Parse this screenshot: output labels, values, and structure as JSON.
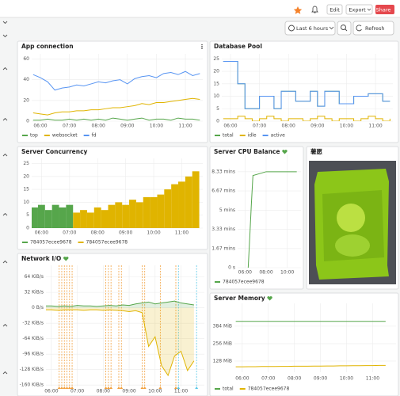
{
  "toolbar": {
    "edit": "Edit",
    "export": "Export",
    "share": "Share",
    "time_range": "Last 6 hours",
    "refresh": "Refresh"
  },
  "panels": [
    {
      "title": "App connection",
      "chart": {
        "type": "line",
        "x": [
          5.75,
          6,
          6.25,
          6.5,
          6.75,
          7,
          7.25,
          7.5,
          7.75,
          8,
          8.25,
          8.5,
          8.75,
          9,
          9.25,
          9.5,
          9.75,
          10,
          10.25,
          10.5,
          10.75,
          11,
          11.25,
          11.5
        ],
        "xlim": [
          5.7,
          11.6
        ],
        "xticks": [
          {
            "value": 6,
            "label": "06:00"
          },
          {
            "value": 7,
            "label": "07:00"
          },
          {
            "value": 8,
            "label": "08:00"
          },
          {
            "value": 9,
            "label": "09:00"
          },
          {
            "value": 10,
            "label": "10:00"
          },
          {
            "value": 11,
            "label": "11:00"
          }
        ],
        "ylim": [
          0,
          65
        ],
        "yticks": [
          0,
          20,
          40,
          60
        ],
        "grid": true,
        "legend": "bottom",
        "series": [
          {
            "name": "top",
            "color": "#56a64b",
            "values": [
              1,
              1,
              2,
              1,
              1,
              2,
              1,
              2,
              1,
              2,
              1,
              3,
              2,
              1,
              2,
              3,
              1,
              2,
              2,
              1,
              3,
              2,
              2,
              1
            ]
          },
          {
            "name": "websocket",
            "color": "#e0b400",
            "values": [
              8,
              7,
              6,
              8,
              9,
              9,
              10,
              10,
              11,
              11,
              12,
              13,
              13,
              14,
              15,
              17,
              16,
              18,
              18,
              19,
              20,
              21,
              22,
              21
            ]
          },
          {
            "name": "fd",
            "color": "#5794f2",
            "values": [
              45,
              42,
              38,
              30,
              32,
              33,
              35,
              34,
              36,
              38,
              37,
              39,
              40,
              36,
              41,
              43,
              44,
              42,
              46,
              47,
              45,
              48,
              44,
              46
            ]
          }
        ]
      }
    },
    {
      "title": "Database Pool",
      "chart": {
        "type": "line",
        "step": true,
        "x": [
          5.75,
          6,
          6.25,
          6.5,
          6.75,
          7,
          7.25,
          7.5,
          7.75,
          8,
          8.25,
          8.5,
          8.75,
          9,
          9.25,
          9.5,
          9.75,
          10,
          10.25,
          10.5,
          10.75,
          11,
          11.25,
          11.5
        ],
        "xlim": [
          5.7,
          11.6
        ],
        "xticks": [
          {
            "value": 6,
            "label": "06:00"
          },
          {
            "value": 7,
            "label": "07:00"
          },
          {
            "value": 8,
            "label": "08:00"
          },
          {
            "value": 9,
            "label": "09:00"
          },
          {
            "value": 10,
            "label": "10:00"
          },
          {
            "value": 11,
            "label": "11:00"
          }
        ],
        "ylim": [
          0,
          27
        ],
        "yticks": [
          0,
          5,
          10,
          15,
          20,
          25
        ],
        "grid": true,
        "legend": "bottom",
        "series": [
          {
            "name": "total",
            "color": "#56a64b",
            "values": [
              24,
              24,
              15,
              5,
              5,
              10,
              10,
              5,
              12,
              12,
              8,
              8,
              12,
              6,
              12,
              12,
              7,
              7,
              10,
              10,
              11,
              11,
              8,
              8
            ]
          },
          {
            "name": "idle",
            "color": "#e0b400",
            "values": [
              1,
              1,
              2,
              1,
              0,
              1,
              2,
              1,
              0,
              1,
              1,
              0,
              1,
              2,
              1,
              0,
              1,
              1,
              0,
              1,
              2,
              1,
              0,
              1
            ]
          },
          {
            "name": "active",
            "color": "#5794f2",
            "values": [
              24,
              24,
              15,
              5,
              5,
              10,
              10,
              5,
              12,
              12,
              8,
              8,
              12,
              6,
              12,
              12,
              7,
              7,
              10,
              10,
              11,
              11,
              8,
              8
            ]
          }
        ]
      }
    },
    {
      "title": "Server Concurrency",
      "chart": {
        "type": "bar",
        "x": [
          5.75,
          6,
          6.25,
          6.5,
          6.75,
          7,
          7.25,
          7.5,
          7.75,
          8,
          8.25,
          8.5,
          8.75,
          9,
          9.25,
          9.5,
          9.75,
          10,
          10.25,
          10.5,
          10.75,
          11,
          11.25,
          11.5
        ],
        "xlim": [
          5.65,
          11.75
        ],
        "xticks": [
          {
            "value": 6,
            "label": "06:00"
          },
          {
            "value": 7,
            "label": "07:00"
          },
          {
            "value": 8,
            "label": "08:00"
          },
          {
            "value": 9,
            "label": "09:00"
          },
          {
            "value": 10,
            "label": "10:00"
          },
          {
            "value": 11,
            "label": "11:00"
          }
        ],
        "ylim": [
          0,
          27
        ],
        "yticks": [
          0,
          5,
          10,
          15,
          20,
          25
        ],
        "grid": true,
        "legend": "bottom",
        "series": [
          {
            "name": "784057ecee9678",
            "color": "#56a64b",
            "values": [
              8,
              9,
              7,
              9,
              8,
              9,
              null,
              null,
              null,
              null,
              null,
              null,
              null,
              null,
              null,
              null,
              null,
              null,
              null,
              null,
              null,
              null,
              null,
              null
            ]
          },
          {
            "name": "784057ecee9678",
            "color": "#e0b400",
            "values": [
              null,
              null,
              null,
              null,
              null,
              null,
              6,
              7,
              6,
              8,
              7,
              9,
              10,
              9,
              11,
              10,
              12,
              12,
              13,
              15,
              17,
              18,
              20,
              22
            ]
          }
        ]
      }
    },
    {
      "title": "Server CPU Balance",
      "chart": {
        "type": "line",
        "x": [
          6.3,
          6.45,
          6.6,
          6.75,
          8,
          9,
          10,
          10.9
        ],
        "xlim": [
          5.3,
          11.3
        ],
        "xticks": [
          {
            "value": 6,
            "label": "06:00"
          },
          {
            "value": 8,
            "label": "08:00"
          },
          {
            "value": 10,
            "label": "10:00"
          }
        ],
        "ylim": [
          0,
          590
        ],
        "yticks": [
          {
            "value": 0,
            "label": "0 s"
          },
          {
            "value": 100,
            "label": "1.67 mins"
          },
          {
            "value": 200,
            "label": "3.33 mins"
          },
          {
            "value": 300,
            "label": "5 mins"
          },
          {
            "value": 400,
            "label": "6.67 mins"
          },
          {
            "value": 500,
            "label": "8.33 mins"
          }
        ],
        "grid": true,
        "legend": "bottom",
        "series": [
          {
            "name": "784057ecee9678",
            "color": "#56a64b",
            "values": [
              0,
              160,
              330,
              480,
              500,
              500,
              500,
              500
            ]
          }
        ]
      }
    },
    {
      "title": "薯愿"
    },
    {
      "title": "Network I/O",
      "chart": {
        "type": "line",
        "fill": true,
        "x": [
          5.75,
          6,
          6.25,
          6.5,
          6.75,
          7,
          7.25,
          7.5,
          7.75,
          8,
          8.25,
          8.5,
          8.75,
          9,
          9.25,
          9.5,
          9.75,
          10,
          10.25,
          10.5,
          10.75,
          11,
          11.25,
          11.5
        ],
        "xlim": [
          5.79,
          11.9
        ],
        "xticks": [
          {
            "value": 6,
            "label": "06:00"
          },
          {
            "value": 7,
            "label": "07:00"
          },
          {
            "value": 8,
            "label": "08:00"
          },
          {
            "value": 9,
            "label": "09:00"
          },
          {
            "value": 10,
            "label": "10:00"
          },
          {
            "value": 11,
            "label": "11:00"
          }
        ],
        "ylim": [
          -163,
          88
        ],
        "yticks": [
          {
            "value": 64,
            "label": "64 KiB/s"
          },
          {
            "value": 32,
            "label": "32 KiB/s"
          },
          {
            "value": 0,
            "label": "0 B/s"
          },
          {
            "value": -32,
            "label": "-32 KiB/s"
          },
          {
            "value": -64,
            "label": "-64 KiB/s"
          },
          {
            "value": -96,
            "label": "-96 KiB/s"
          },
          {
            "value": -128,
            "label": "-128 KiB/s"
          },
          {
            "value": -160,
            "label": "-160 KiB/s"
          }
        ],
        "grid": true,
        "annotations": [
          {
            "color": "#f2a03d",
            "x": [
              6.3,
              6.4,
              6.5,
              6.6,
              6.7,
              6.8,
              8.1,
              8.2,
              8.3,
              8.6,
              8.7,
              9.5,
              9.6,
              10.2,
              10.8
            ]
          },
          {
            "color": "#5ac8e8",
            "x": [
              10.9,
              11.6
            ]
          }
        ],
        "series": [
          {
            "color": "#56a64b",
            "values": [
              4,
              4,
              3,
              4,
              3,
              5,
              4,
              4,
              3,
              4,
              5,
              4,
              6,
              5,
              8,
              10,
              12,
              8,
              10,
              12,
              14,
              10,
              8,
              6
            ]
          },
          {
            "color": "#e0b400",
            "values": [
              -4,
              -4,
              -5,
              -4,
              -4,
              -4,
              -5,
              -4,
              -4,
              -5,
              -4,
              -5,
              -6,
              -8,
              -6,
              -10,
              -80,
              -60,
              -120,
              -140,
              -100,
              -90,
              -130,
              -110
            ]
          }
        ]
      }
    },
    {
      "title": "Server Memory",
      "chart": {
        "type": "line",
        "x": [
          5.75,
          6,
          6.25,
          6.5,
          6.75,
          7,
          7.25,
          7.5,
          7.75,
          8,
          8.25,
          8.5,
          8.75,
          9,
          9.25,
          9.5,
          9.75,
          10,
          10.25,
          10.5,
          10.75,
          11,
          11.25,
          11.5
        ],
        "xlim": [
          5.7,
          11.9
        ],
        "xticks": [
          {
            "value": 6,
            "label": "06:00"
          },
          {
            "value": 7,
            "label": "07:00"
          },
          {
            "value": 8,
            "label": "08:00"
          },
          {
            "value": 9,
            "label": "09:00"
          },
          {
            "value": 10,
            "label": "10:00"
          },
          {
            "value": 11,
            "label": "11:00"
          }
        ],
        "ylim": [
          46,
          552
        ],
        "yticks": [
          {
            "value": 128,
            "label": "128 MiB"
          },
          {
            "value": 256,
            "label": "256 MiB"
          },
          {
            "value": 384,
            "label": "384 MiB"
          }
        ],
        "grid": true,
        "legend": "bottom",
        "series": [
          {
            "name": "total",
            "color": "#56a64b",
            "values": [
              420,
              420,
              420,
              420,
              420,
              420,
              420,
              420,
              420,
              420,
              420,
              420,
              420,
              420,
              420,
              420,
              420,
              420,
              420,
              420,
              420,
              420,
              420,
              420
            ]
          },
          {
            "name": "784057ecee9678",
            "color": "#e0b400",
            "values": [
              86,
              86,
              87,
              87,
              88,
              88,
              88,
              89,
              89,
              90,
              90,
              90,
              91,
              91,
              92,
              92,
              93,
              93,
              94,
              94,
              95,
              95,
              96,
              96
            ]
          }
        ]
      }
    }
  ]
}
